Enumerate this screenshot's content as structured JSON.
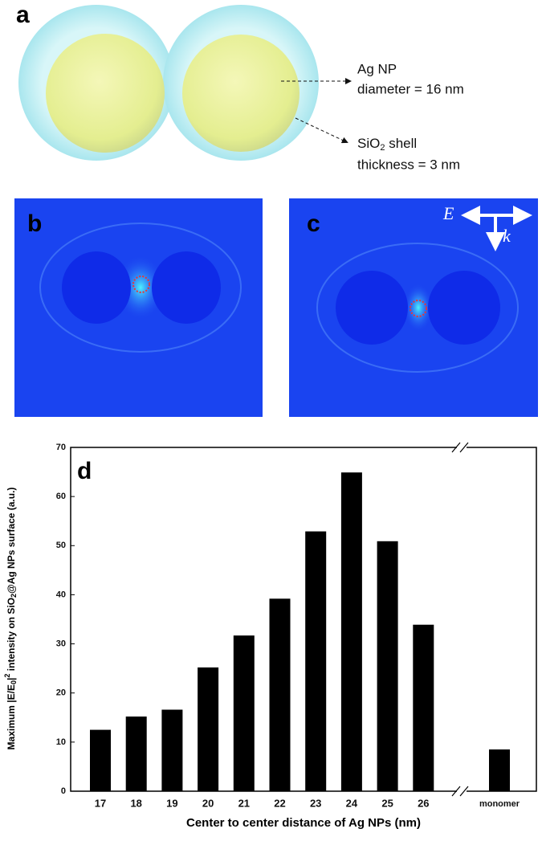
{
  "panel_a": {
    "label": "a",
    "np_label": "Ag NP",
    "np_diameter": "diameter = 16 nm",
    "shell_label": [
      "SiO",
      "2",
      " shell"
    ],
    "shell_thickness": "thickness = 3 nm"
  },
  "panel_b": {
    "label": "b"
  },
  "panel_c": {
    "label": "c",
    "field_label": "E",
    "wave_label": "k"
  },
  "chart_data": {
    "type": "bar",
    "title": "d",
    "categories": [
      "17",
      "18",
      "19",
      "20",
      "21",
      "22",
      "23",
      "24",
      "25",
      "26",
      "monomer"
    ],
    "values": [
      12.5,
      15.2,
      16.6,
      25.2,
      31.7,
      39.2,
      52.9,
      64.9,
      50.9,
      33.9,
      8.5
    ],
    "color": "#000000",
    "ylim": [
      0,
      70
    ],
    "yticks": [
      0,
      10,
      20,
      30,
      40,
      50,
      60,
      70
    ],
    "x_label": "Center to center distance of Ag NPs (nm)",
    "y_label": [
      "Maximum |E/E",
      "0",
      "|",
      "2",
      " intensity on SiO",
      "2",
      "@Ag NPs surface (a.u.)"
    ]
  }
}
